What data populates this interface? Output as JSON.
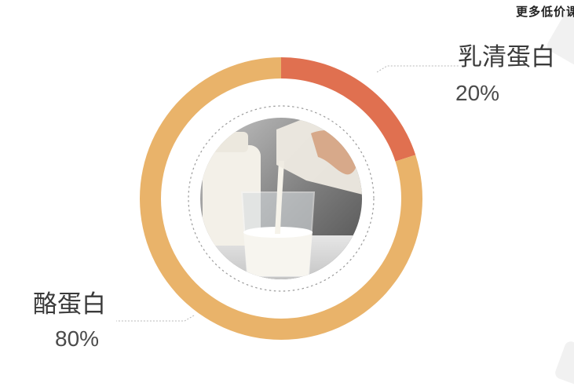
{
  "watermark": "更多低价课",
  "chart_data": {
    "type": "pie",
    "title": "",
    "slices": [
      {
        "label": "乳清蛋白",
        "value": 20,
        "value_label": "20%",
        "color": "#e07050"
      },
      {
        "label": "酪蛋白",
        "value": 80,
        "value_label": "80%",
        "color": "#e9b36a"
      }
    ],
    "style": "donut",
    "legend": "none"
  },
  "center_image": {
    "icon": "milk-pour-photo"
  }
}
